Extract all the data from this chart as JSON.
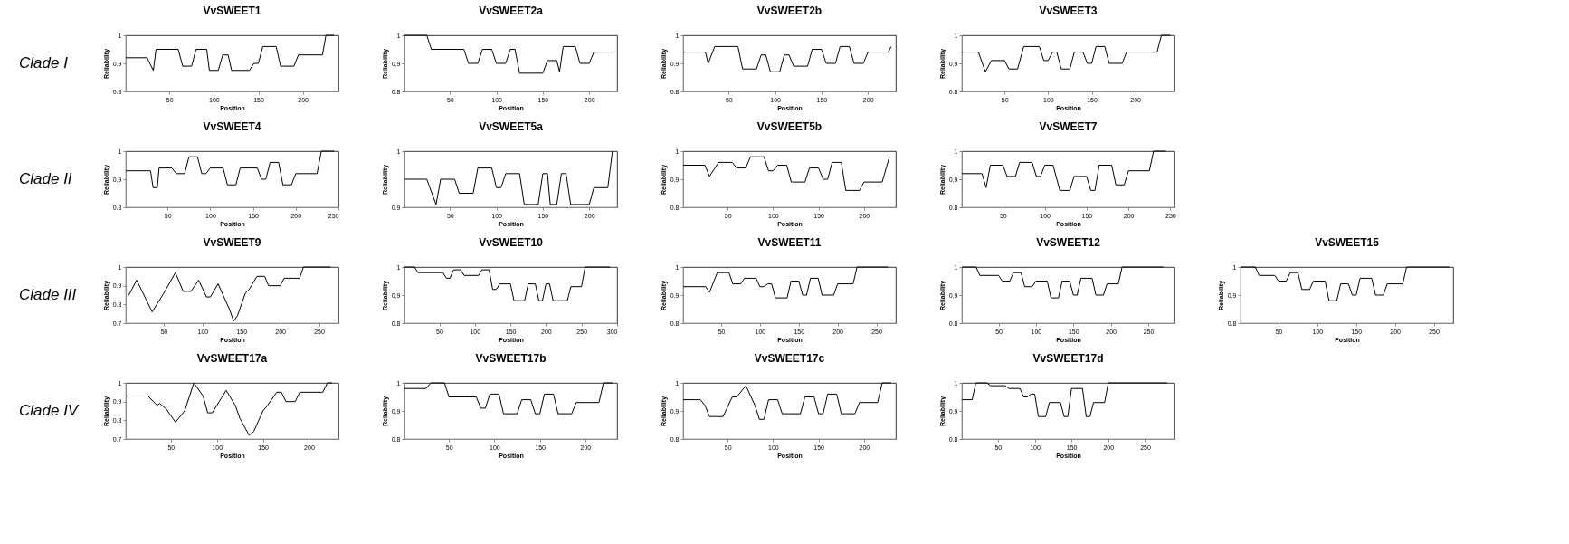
{
  "chart_data": [
    {
      "type": "line",
      "title": "VvSWEET1",
      "xlabel": "Position",
      "ylabel": "Reliability",
      "annotations": [
        "Clade I"
      ],
      "xlim": [
        1,
        240
      ],
      "ylim": [
        0.8,
        1
      ],
      "xticks": [
        50,
        100,
        150,
        200
      ],
      "yticks": [
        0.8,
        0.9,
        1
      ],
      "x": [
        1,
        25,
        28,
        32,
        35,
        60,
        65,
        75,
        80,
        92,
        95,
        105,
        110,
        116,
        120,
        140,
        145,
        150,
        155,
        170,
        175,
        190,
        195,
        222,
        226,
        235
      ],
      "series": [
        {
          "color": "#000000",
          "values": [
            0.92,
            0.92,
            0.9,
            0.875,
            0.95,
            0.95,
            0.89,
            0.89,
            0.95,
            0.95,
            0.875,
            0.875,
            0.93,
            0.93,
            0.875,
            0.875,
            0.9,
            0.9,
            0.96,
            0.96,
            0.89,
            0.89,
            0.93,
            0.93,
            1,
            1
          ]
        }
      ]
    },
    {
      "type": "line",
      "title": "VvSWEET2a",
      "xlabel": "Position",
      "ylabel": "Reliability",
      "xlim": [
        1,
        230
      ],
      "ylim": [
        0.8,
        1
      ],
      "xticks": [
        50,
        100,
        150,
        200
      ],
      "yticks": [
        0.8,
        0.9,
        1
      ],
      "x": [
        1,
        25,
        30,
        65,
        70,
        80,
        85,
        95,
        100,
        110,
        115,
        120,
        125,
        150,
        155,
        165,
        168,
        172,
        185,
        190,
        200,
        205,
        225
      ],
      "series": [
        {
          "color": "#000000",
          "values": [
            1,
            1,
            0.95,
            0.95,
            0.9,
            0.9,
            0.95,
            0.95,
            0.9,
            0.9,
            0.95,
            0.95,
            0.865,
            0.865,
            0.91,
            0.91,
            0.87,
            0.96,
            0.96,
            0.9,
            0.9,
            0.94,
            0.94
          ]
        }
      ]
    },
    {
      "type": "line",
      "title": "VvSWEET2b",
      "xlabel": "Position",
      "ylabel": "Reliability",
      "xlim": [
        1,
        230
      ],
      "ylim": [
        0.8,
        1
      ],
      "xticks": [
        50,
        100,
        150,
        200
      ],
      "yticks": [
        0.8,
        0.9,
        1
      ],
      "x": [
        1,
        25,
        28,
        35,
        60,
        65,
        80,
        85,
        90,
        95,
        105,
        110,
        115,
        120,
        135,
        140,
        150,
        155,
        165,
        170,
        180,
        185,
        195,
        200,
        222,
        225
      ],
      "series": [
        {
          "color": "#000000",
          "values": [
            0.94,
            0.94,
            0.9,
            0.96,
            0.96,
            0.88,
            0.88,
            0.93,
            0.93,
            0.87,
            0.87,
            0.93,
            0.93,
            0.89,
            0.89,
            0.95,
            0.95,
            0.9,
            0.9,
            0.96,
            0.96,
            0.9,
            0.9,
            0.94,
            0.94,
            0.96
          ]
        }
      ]
    },
    {
      "type": "line",
      "title": "VvSWEET3",
      "xlabel": "Position",
      "ylabel": "Reliability",
      "xlim": [
        1,
        245
      ],
      "ylim": [
        0.8,
        1
      ],
      "xticks": [
        50,
        100,
        150,
        200
      ],
      "yticks": [
        0.8,
        0.9,
        1
      ],
      "x": [
        1,
        20,
        28,
        35,
        50,
        55,
        65,
        72,
        90,
        95,
        100,
        105,
        110,
        115,
        125,
        130,
        140,
        145,
        150,
        155,
        165,
        170,
        185,
        190,
        225,
        230,
        240
      ],
      "series": [
        {
          "color": "#000000",
          "values": [
            0.94,
            0.94,
            0.87,
            0.91,
            0.91,
            0.88,
            0.88,
            0.96,
            0.96,
            0.91,
            0.91,
            0.94,
            0.94,
            0.88,
            0.88,
            0.94,
            0.94,
            0.9,
            0.9,
            0.96,
            0.96,
            0.9,
            0.9,
            0.94,
            0.94,
            1,
            1
          ]
        }
      ]
    },
    {
      "type": "line",
      "title": "VvSWEET4",
      "xlabel": "Position",
      "ylabel": "Reliability",
      "annotations": [
        "Clade II"
      ],
      "xlim": [
        1,
        250
      ],
      "ylim": [
        0.8,
        1
      ],
      "xticks": [
        50,
        100,
        150,
        200,
        250
      ],
      "yticks": [
        0.8,
        0.9,
        1
      ],
      "x": [
        1,
        30,
        33,
        38,
        40,
        55,
        60,
        70,
        75,
        85,
        90,
        95,
        100,
        115,
        120,
        130,
        135,
        155,
        160,
        165,
        170,
        180,
        185,
        195,
        200,
        225,
        230,
        245
      ],
      "series": [
        {
          "color": "#000000",
          "values": [
            0.93,
            0.93,
            0.87,
            0.87,
            0.94,
            0.94,
            0.92,
            0.92,
            0.98,
            0.98,
            0.92,
            0.92,
            0.94,
            0.94,
            0.88,
            0.88,
            0.94,
            0.94,
            0.9,
            0.9,
            0.96,
            0.96,
            0.88,
            0.88,
            0.92,
            0.92,
            1,
            1
          ]
        }
      ]
    },
    {
      "type": "line",
      "title": "VvSWEET5a",
      "xlabel": "Position",
      "ylabel": "Reliability",
      "xlim": [
        1,
        230
      ],
      "ylim": [
        0.9,
        1
      ],
      "xticks": [
        50,
        100,
        150,
        200
      ],
      "yticks": [
        0.9,
        1
      ],
      "x": [
        1,
        25,
        35,
        40,
        55,
        60,
        75,
        80,
        95,
        100,
        105,
        110,
        125,
        130,
        145,
        150,
        155,
        158,
        165,
        170,
        175,
        180,
        200,
        205,
        220,
        225
      ],
      "series": [
        {
          "color": "#000000",
          "values": [
            0.95,
            0.95,
            0.905,
            0.95,
            0.95,
            0.925,
            0.925,
            0.97,
            0.97,
            0.935,
            0.935,
            0.96,
            0.96,
            0.905,
            0.905,
            0.96,
            0.96,
            0.905,
            0.905,
            0.96,
            0.96,
            0.905,
            0.905,
            0.935,
            0.935,
            1
          ]
        }
      ]
    },
    {
      "type": "line",
      "title": "VvSWEET5b",
      "xlabel": "Position",
      "ylabel": "Reliability",
      "xlim": [
        1,
        235
      ],
      "ylim": [
        0.8,
        1
      ],
      "xticks": [
        50,
        100,
        150,
        200
      ],
      "yticks": [
        0.8,
        0.9,
        1
      ],
      "x": [
        1,
        25,
        30,
        40,
        55,
        60,
        70,
        75,
        90,
        95,
        100,
        105,
        115,
        120,
        135,
        140,
        150,
        155,
        160,
        165,
        175,
        180,
        195,
        200,
        220,
        228
      ],
      "series": [
        {
          "color": "#000000",
          "values": [
            0.95,
            0.95,
            0.91,
            0.96,
            0.96,
            0.94,
            0.94,
            0.98,
            0.98,
            0.93,
            0.93,
            0.95,
            0.95,
            0.89,
            0.89,
            0.94,
            0.94,
            0.9,
            0.9,
            0.96,
            0.96,
            0.86,
            0.86,
            0.89,
            0.89,
            0.98
          ]
        }
      ]
    },
    {
      "type": "line",
      "title": "VvSWEET7",
      "xlabel": "Position",
      "ylabel": "Reliability",
      "xlim": [
        1,
        255
      ],
      "ylim": [
        0.8,
        1
      ],
      "xticks": [
        50,
        100,
        150,
        200,
        250
      ],
      "yticks": [
        0.8,
        0.9,
        1
      ],
      "x": [
        1,
        25,
        30,
        35,
        50,
        55,
        65,
        70,
        85,
        90,
        95,
        100,
        110,
        118,
        130,
        135,
        150,
        155,
        160,
        165,
        180,
        185,
        195,
        200,
        225,
        230,
        245
      ],
      "series": [
        {
          "color": "#000000",
          "values": [
            0.92,
            0.92,
            0.87,
            0.95,
            0.95,
            0.91,
            0.91,
            0.96,
            0.96,
            0.91,
            0.91,
            0.95,
            0.95,
            0.86,
            0.86,
            0.91,
            0.91,
            0.86,
            0.86,
            0.95,
            0.95,
            0.88,
            0.88,
            0.93,
            0.93,
            1,
            1
          ]
        }
      ]
    },
    {
      "type": "line",
      "title": "VvSWEET9",
      "xlabel": "Position",
      "ylabel": "Reliability",
      "annotations": [
        "Clade III"
      ],
      "xlim": [
        1,
        275
      ],
      "ylim": [
        0.7,
        1
      ],
      "xticks": [
        50,
        100,
        150,
        200,
        250
      ],
      "yticks": [
        0.7,
        0.8,
        0.9,
        1
      ],
      "x": [
        5,
        15,
        35,
        50,
        65,
        75,
        85,
        95,
        105,
        110,
        120,
        135,
        140,
        145,
        155,
        160,
        170,
        180,
        185,
        200,
        205,
        225,
        230,
        265
      ],
      "series": [
        {
          "color": "#000000",
          "values": [
            0.85,
            0.93,
            0.76,
            0.86,
            0.97,
            0.87,
            0.87,
            0.93,
            0.84,
            0.84,
            0.91,
            0.77,
            0.71,
            0.74,
            0.86,
            0.88,
            0.95,
            0.95,
            0.9,
            0.9,
            0.94,
            0.94,
            1,
            1
          ]
        }
      ]
    },
    {
      "type": "line",
      "title": "VvSWEET10",
      "xlabel": "Position",
      "ylabel": "Reliability",
      "xlim": [
        1,
        300
      ],
      "ylim": [
        0.8,
        1
      ],
      "xticks": [
        50,
        100,
        150,
        200,
        250,
        300
      ],
      "yticks": [
        0.8,
        0.9,
        1
      ],
      "x": [
        1,
        15,
        20,
        55,
        60,
        65,
        70,
        80,
        85,
        105,
        110,
        120,
        125,
        130,
        135,
        150,
        155,
        170,
        175,
        185,
        190,
        195,
        200,
        205,
        210,
        230,
        235,
        250,
        255,
        290
      ],
      "series": [
        {
          "color": "#000000",
          "values": [
            1,
            1,
            0.98,
            0.98,
            0.96,
            0.96,
            0.99,
            0.99,
            0.97,
            0.97,
            0.99,
            0.99,
            0.92,
            0.92,
            0.94,
            0.94,
            0.88,
            0.88,
            0.94,
            0.94,
            0.88,
            0.88,
            0.94,
            0.94,
            0.88,
            0.88,
            0.93,
            0.93,
            1,
            1
          ]
        }
      ]
    },
    {
      "type": "line",
      "title": "VvSWEET11",
      "xlabel": "Position",
      "ylabel": "Reliability",
      "xlim": [
        1,
        275
      ],
      "ylim": [
        0.8,
        1
      ],
      "xticks": [
        50,
        100,
        150,
        200,
        250
      ],
      "yticks": [
        0.8,
        0.9,
        1
      ],
      "x": [
        1,
        30,
        35,
        45,
        60,
        65,
        75,
        80,
        95,
        100,
        105,
        110,
        115,
        120,
        135,
        140,
        150,
        155,
        160,
        165,
        175,
        180,
        195,
        200,
        220,
        225,
        265
      ],
      "series": [
        {
          "color": "#000000",
          "values": [
            0.93,
            0.93,
            0.91,
            0.98,
            0.98,
            0.94,
            0.94,
            0.96,
            0.96,
            0.93,
            0.93,
            0.94,
            0.94,
            0.89,
            0.89,
            0.95,
            0.95,
            0.9,
            0.9,
            0.96,
            0.96,
            0.9,
            0.9,
            0.94,
            0.94,
            1,
            1
          ]
        }
      ]
    },
    {
      "type": "line",
      "title": "VvSWEET12",
      "xlabel": "Position",
      "ylabel": "Reliability",
      "xlim": [
        1,
        285
      ],
      "ylim": [
        0.8,
        1
      ],
      "xticks": [
        50,
        100,
        150,
        200,
        250
      ],
      "yticks": [
        0.8,
        0.9,
        1
      ],
      "x": [
        1,
        20,
        25,
        50,
        55,
        65,
        70,
        80,
        85,
        95,
        100,
        115,
        120,
        130,
        135,
        145,
        150,
        155,
        160,
        175,
        180,
        190,
        195,
        210,
        215,
        270
      ],
      "series": [
        {
          "color": "#000000",
          "values": [
            1,
            1,
            0.97,
            0.97,
            0.95,
            0.95,
            0.98,
            0.98,
            0.93,
            0.93,
            0.95,
            0.95,
            0.89,
            0.89,
            0.95,
            0.95,
            0.9,
            0.9,
            0.96,
            0.96,
            0.9,
            0.9,
            0.94,
            0.94,
            1,
            1
          ]
        }
      ]
    },
    {
      "type": "line",
      "title": "VvSWEET15",
      "xlabel": "Position",
      "ylabel": "Reliability",
      "xlim": [
        1,
        275
      ],
      "ylim": [
        0.8,
        1
      ],
      "xticks": [
        50,
        100,
        150,
        200,
        250
      ],
      "yticks": [
        0.8,
        0.9,
        1
      ],
      "x": [
        1,
        20,
        25,
        45,
        50,
        60,
        65,
        75,
        80,
        90,
        95,
        110,
        115,
        125,
        130,
        140,
        145,
        150,
        155,
        170,
        175,
        185,
        190,
        210,
        215,
        270
      ],
      "series": [
        {
          "color": "#000000",
          "values": [
            1,
            1,
            0.97,
            0.97,
            0.95,
            0.95,
            0.98,
            0.98,
            0.92,
            0.92,
            0.95,
            0.95,
            0.88,
            0.88,
            0.94,
            0.94,
            0.9,
            0.9,
            0.96,
            0.96,
            0.9,
            0.9,
            0.94,
            0.94,
            1,
            1
          ]
        }
      ]
    },
    {
      "type": "line",
      "title": "VvSWEET17a",
      "xlabel": "Position",
      "ylabel": "Reliability",
      "annotations": [
        "Clade IV"
      ],
      "xlim": [
        1,
        232
      ],
      "ylim": [
        0.7,
        1
      ],
      "xticks": [
        50,
        100,
        150,
        200
      ],
      "yticks": [
        0.7,
        0.8,
        0.9,
        1
      ],
      "x": [
        1,
        25,
        35,
        38,
        45,
        55,
        65,
        75,
        85,
        90,
        95,
        105,
        110,
        120,
        125,
        135,
        140,
        150,
        155,
        165,
        170,
        175,
        185,
        190,
        215,
        220,
        225
      ],
      "series": [
        {
          "color": "#000000",
          "values": [
            0.93,
            0.93,
            0.88,
            0.89,
            0.86,
            0.79,
            0.85,
            1,
            0.93,
            0.84,
            0.84,
            0.92,
            0.96,
            0.88,
            0.81,
            0.72,
            0.74,
            0.85,
            0.88,
            0.95,
            0.95,
            0.9,
            0.9,
            0.95,
            0.95,
            1,
            1
          ]
        }
      ]
    },
    {
      "type": "line",
      "title": "VvSWEET17b",
      "xlabel": "Position",
      "ylabel": "Reliability",
      "xlim": [
        1,
        235
      ],
      "ylim": [
        0.8,
        1
      ],
      "xticks": [
        50,
        100,
        150,
        200
      ],
      "yticks": [
        0.8,
        0.9,
        1
      ],
      "x": [
        1,
        25,
        30,
        45,
        50,
        80,
        85,
        90,
        95,
        105,
        110,
        125,
        130,
        140,
        145,
        150,
        155,
        165,
        170,
        185,
        190,
        215,
        220,
        230
      ],
      "series": [
        {
          "color": "#000000",
          "values": [
            0.98,
            0.98,
            1,
            1,
            0.95,
            0.95,
            0.91,
            0.91,
            0.96,
            0.96,
            0.89,
            0.89,
            0.94,
            0.94,
            0.89,
            0.89,
            0.96,
            0.96,
            0.89,
            0.89,
            0.93,
            0.93,
            1,
            1
          ]
        }
      ]
    },
    {
      "type": "line",
      "title": "VvSWEET17c",
      "xlabel": "Position",
      "ylabel": "Reliability",
      "xlim": [
        1,
        235
      ],
      "ylim": [
        0.8,
        1
      ],
      "xticks": [
        50,
        100,
        150,
        200
      ],
      "yticks": [
        0.8,
        0.9,
        1
      ],
      "x": [
        1,
        20,
        25,
        30,
        45,
        55,
        60,
        70,
        80,
        85,
        90,
        95,
        105,
        110,
        130,
        135,
        145,
        150,
        155,
        160,
        170,
        175,
        190,
        195,
        215,
        220,
        230
      ],
      "series": [
        {
          "color": "#000000",
          "values": [
            0.94,
            0.94,
            0.92,
            0.88,
            0.88,
            0.95,
            0.95,
            0.99,
            0.92,
            0.87,
            0.87,
            0.94,
            0.94,
            0.89,
            0.89,
            0.95,
            0.95,
            0.89,
            0.89,
            0.96,
            0.96,
            0.89,
            0.89,
            0.93,
            0.93,
            1,
            1
          ]
        }
      ]
    },
    {
      "type": "line",
      "title": "VvSWEET17d",
      "xlabel": "Position",
      "ylabel": "Reliability",
      "xlim": [
        1,
        290
      ],
      "ylim": [
        0.8,
        1
      ],
      "xticks": [
        50,
        100,
        150,
        200,
        250
      ],
      "yticks": [
        0.8,
        0.9,
        1
      ],
      "x": [
        1,
        15,
        20,
        35,
        40,
        60,
        65,
        80,
        85,
        90,
        95,
        100,
        105,
        115,
        120,
        135,
        140,
        145,
        150,
        165,
        170,
        175,
        180,
        195,
        200,
        280
      ],
      "series": [
        {
          "color": "#000000",
          "values": [
            0.94,
            0.94,
            1,
            1,
            0.99,
            0.99,
            0.98,
            0.98,
            0.95,
            0.95,
            0.96,
            0.96,
            0.88,
            0.88,
            0.93,
            0.93,
            0.88,
            0.88,
            0.98,
            0.98,
            0.88,
            0.88,
            0.93,
            0.93,
            1,
            1
          ]
        }
      ]
    }
  ]
}
